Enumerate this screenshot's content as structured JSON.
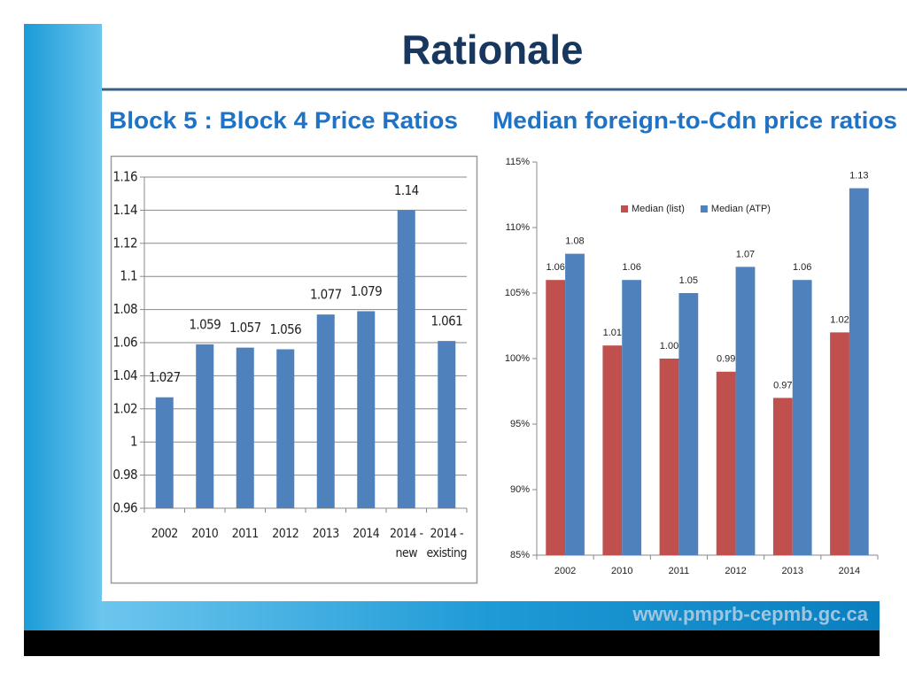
{
  "title": "Rationale",
  "footer": {
    "url": "www.pmprb-cepmb.gc.ca"
  },
  "chart_data": [
    {
      "type": "bar",
      "title": "Block 5 : Block 4 Price Ratios",
      "categories": [
        "2002",
        "2010",
        "2011",
        "2012",
        "2013",
        "2014",
        "2014 - new",
        "2014 - existing"
      ],
      "values": [
        1.027,
        1.059,
        1.057,
        1.056,
        1.077,
        1.079,
        1.14,
        1.061
      ],
      "color": "#4f81bd",
      "ylim": [
        0.96,
        1.16
      ],
      "yticks": [
        0.96,
        0.98,
        1,
        1.02,
        1.04,
        1.06,
        1.08,
        1.1,
        1.12,
        1.14,
        1.16
      ],
      "grid": true
    },
    {
      "type": "bar",
      "title": "Median foreign-to-Cdn price ratios",
      "categories": [
        "2002",
        "2010",
        "2011",
        "2012",
        "2013",
        "2014"
      ],
      "series": [
        {
          "name": "Median (list)",
          "color": "#c0504d",
          "values": [
            106,
            101,
            100,
            99,
            97,
            102
          ],
          "value_labels": [
            "1.06",
            "1.01",
            "1.00",
            "0.99",
            "0.97",
            "1.02"
          ]
        },
        {
          "name": "Median (ATP)",
          "color": "#4f81bd",
          "values": [
            108,
            106,
            105,
            107,
            106,
            113
          ],
          "value_labels": [
            "1.08",
            "1.06",
            "1.05",
            "1.07",
            "1.06",
            "1.13"
          ]
        }
      ],
      "ylim": [
        85,
        115
      ],
      "yticks": [
        {
          "value": 85,
          "label": "85%"
        },
        {
          "value": 90,
          "label": "90%"
        },
        {
          "value": 95,
          "label": "95%"
        },
        {
          "value": 100,
          "label": "100%"
        },
        {
          "value": 105,
          "label": "105%"
        },
        {
          "value": 110,
          "label": "110%"
        },
        {
          "value": 115,
          "label": "115%"
        }
      ],
      "grid": false,
      "legend": "top-right"
    }
  ]
}
